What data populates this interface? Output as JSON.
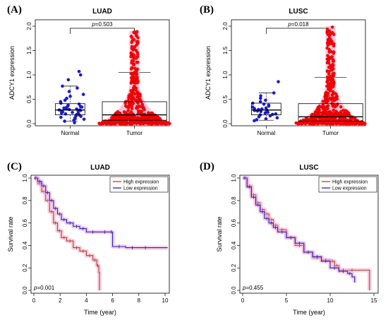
{
  "chart_data": [
    {
      "panel": "(A)",
      "type": "scatter",
      "subtype": "box-dot",
      "title": "LUAD",
      "ylabel": "ADCY1 expression",
      "ylim": [
        0,
        2.0
      ],
      "yticks": [
        "0.0",
        "0.5",
        "1.0",
        "1.5",
        "2.0"
      ],
      "categories": [
        "Normal",
        "Tumor"
      ],
      "pvalue": {
        "prefix": "p",
        "value": "=0.503"
      },
      "groups": [
        {
          "name": "Normal",
          "color": "#1a1ad6",
          "box": {
            "min": 0.05,
            "q1": 0.18,
            "median": 0.28,
            "q3": 0.41,
            "max": 0.77
          },
          "points": [
            0.02,
            0.05,
            0.07,
            0.09,
            0.1,
            0.12,
            0.13,
            0.15,
            0.16,
            0.18,
            0.19,
            0.2,
            0.21,
            0.22,
            0.23,
            0.24,
            0.25,
            0.26,
            0.27,
            0.28,
            0.28,
            0.29,
            0.3,
            0.31,
            0.32,
            0.33,
            0.34,
            0.35,
            0.36,
            0.38,
            0.4,
            0.42,
            0.45,
            0.48,
            0.52,
            0.56,
            0.6,
            0.66,
            0.73,
            0.77,
            0.9,
            1.0,
            1.07
          ]
        },
        {
          "name": "Tumor",
          "color": "#ff0000",
          "box": {
            "min": 0.0,
            "q1": 0.07,
            "median": 0.18,
            "q3": 0.45,
            "max": 1.05
          },
          "points_max": 1.9,
          "n_points": 515
        }
      ]
    },
    {
      "panel": "(B)",
      "type": "scatter",
      "subtype": "box-dot",
      "title": "LUSC",
      "ylabel": "ADCY1 expression",
      "ylim": [
        0,
        2.0
      ],
      "yticks": [
        "0.0",
        "0.5",
        "1.0",
        "1.5",
        "2.0"
      ],
      "categories": [
        "Normal",
        "Tumor"
      ],
      "pvalue": {
        "prefix": "p",
        "value": "=0.018"
      },
      "groups": [
        {
          "name": "Normal",
          "color": "#1a1ad6",
          "box": {
            "min": 0.07,
            "q1": 0.18,
            "median": 0.28,
            "q3": 0.42,
            "max": 0.63
          },
          "points": [
            0.06,
            0.08,
            0.1,
            0.12,
            0.14,
            0.16,
            0.18,
            0.19,
            0.2,
            0.22,
            0.23,
            0.24,
            0.25,
            0.26,
            0.27,
            0.28,
            0.29,
            0.3,
            0.31,
            0.32,
            0.34,
            0.36,
            0.38,
            0.4,
            0.42,
            0.45,
            0.48,
            0.52,
            0.57,
            0.63,
            0.86
          ]
        },
        {
          "name": "Tumor",
          "color": "#ff0000",
          "box": {
            "min": 0.0,
            "q1": 0.05,
            "median": 0.14,
            "q3": 0.41,
            "max": 0.95
          },
          "points_max": 2.0,
          "n_points": 500
        }
      ]
    },
    {
      "panel": "(C)",
      "type": "line",
      "subtype": "survival",
      "title": "LUAD",
      "xlabel": "Time (year)",
      "ylabel": "Survival rate",
      "xlim": [
        0,
        10
      ],
      "ylim": [
        0,
        1.0
      ],
      "xticks": [
        "0",
        "2",
        "4",
        "6",
        "8",
        "10"
      ],
      "yticks": [
        "0.0",
        "0.2",
        "0.4",
        "0.6",
        "0.8",
        "1.0"
      ],
      "legend": "top-right",
      "pvalue": {
        "prefix": "p",
        "value": "=0.001"
      },
      "series": [
        {
          "name": "High expression",
          "color": "#b5402a",
          "x": [
            0,
            0.3,
            0.6,
            0.9,
            1.2,
            1.5,
            1.8,
            2.1,
            2.5,
            3.0,
            3.5,
            4.0,
            4.5,
            4.8,
            4.95,
            5.0
          ],
          "y": [
            1,
            0.95,
            0.88,
            0.8,
            0.7,
            0.6,
            0.53,
            0.47,
            0.44,
            0.38,
            0.35,
            0.31,
            0.27,
            0.22,
            0.16,
            0.0
          ]
        },
        {
          "name": "Low expression",
          "color": "#1f1fc8",
          "x": [
            0,
            0.3,
            0.6,
            0.9,
            1.2,
            1.5,
            1.8,
            2.1,
            2.5,
            3.0,
            3.5,
            4.0,
            5.0,
            5.8,
            6.0,
            7.0,
            8.0,
            9.0,
            10.2
          ],
          "y": [
            1,
            0.97,
            0.93,
            0.87,
            0.8,
            0.73,
            0.68,
            0.63,
            0.6,
            0.57,
            0.55,
            0.52,
            0.52,
            0.52,
            0.39,
            0.38,
            0.38,
            0.38,
            0.38
          ]
        }
      ]
    },
    {
      "panel": "(D)",
      "type": "line",
      "subtype": "survival",
      "title": "LUSC",
      "xlabel": "Time (year)",
      "ylabel": "Survival rate",
      "xlim": [
        0,
        15
      ],
      "ylim": [
        0,
        1.0
      ],
      "xticks": [
        "0",
        "5",
        "10",
        "15"
      ],
      "yticks": [
        "0.0",
        "0.2",
        "0.4",
        "0.6",
        "0.8",
        "1.0"
      ],
      "legend": "top-right",
      "pvalue": {
        "prefix": "p",
        "value": "=0.455"
      },
      "series": [
        {
          "name": "High expression",
          "color": "#b5402a",
          "x": [
            0,
            0.5,
            1,
            1.5,
            2,
            2.5,
            3,
            3.5,
            4,
            5,
            6,
            7,
            8,
            9,
            10,
            10.5,
            11,
            12,
            13,
            14.5
          ],
          "y": [
            1,
            0.93,
            0.85,
            0.78,
            0.72,
            0.68,
            0.63,
            0.58,
            0.54,
            0.47,
            0.4,
            0.34,
            0.29,
            0.27,
            0.26,
            0.22,
            0.18,
            0.18,
            0.18,
            0.0
          ]
        },
        {
          "name": "Low expression",
          "color": "#1f1fc8",
          "x": [
            0,
            0.5,
            1,
            1.5,
            2,
            2.5,
            3,
            3.5,
            4,
            5,
            6,
            7,
            8,
            9,
            10,
            11,
            12,
            12.5,
            12.8
          ],
          "y": [
            1,
            0.92,
            0.83,
            0.76,
            0.7,
            0.64,
            0.6,
            0.56,
            0.52,
            0.47,
            0.42,
            0.34,
            0.3,
            0.26,
            0.2,
            0.17,
            0.15,
            0.12,
            0.07
          ]
        }
      ]
    }
  ]
}
